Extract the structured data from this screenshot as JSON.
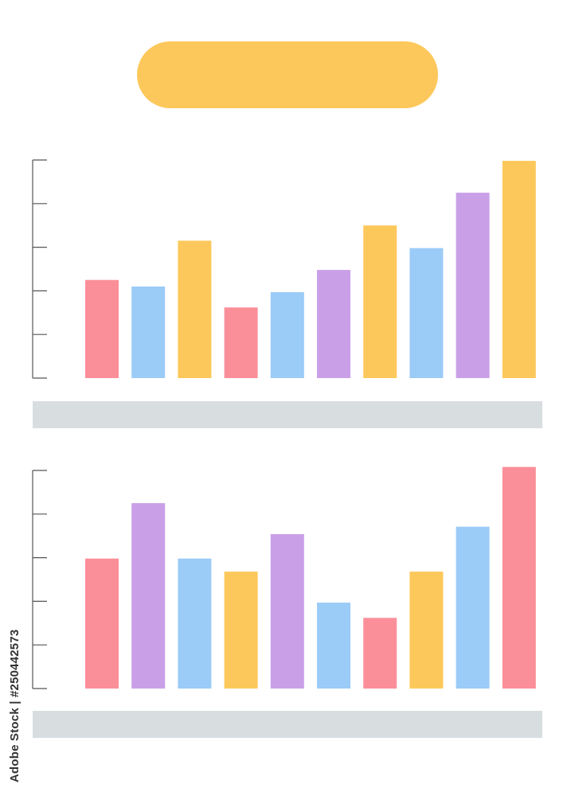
{
  "colors": {
    "pink": "#fb8f99",
    "blue": "#9bcbf7",
    "yellow": "#fdc85b",
    "purple": "#c9a0e8",
    "axis": "#555555",
    "caption_bar": "#d8dde0",
    "title_pill": "#fdc85b"
  },
  "stock_id": "Adobe Stock | #250442573",
  "chart_data": [
    {
      "type": "bar",
      "title": "",
      "xlabel": "",
      "ylabel": "",
      "ylim": [
        0,
        5
      ],
      "ticks": 5,
      "grid": false,
      "legend": "none",
      "values": [
        2.25,
        2.1,
        3.15,
        1.62,
        1.97,
        2.48,
        3.5,
        2.98,
        4.25,
        4.98
      ],
      "bar_colors": [
        "pink",
        "blue",
        "yellow",
        "pink",
        "blue",
        "purple",
        "yellow",
        "blue",
        "purple",
        "yellow"
      ]
    },
    {
      "type": "bar",
      "title": "",
      "xlabel": "",
      "ylabel": "",
      "ylim": [
        0,
        5
      ],
      "ticks": 5,
      "grid": false,
      "legend": "none",
      "values": [
        2.98,
        4.25,
        2.98,
        2.68,
        3.54,
        1.97,
        1.62,
        2.68,
        3.71,
        5.08
      ],
      "bar_colors": [
        "pink",
        "purple",
        "blue",
        "yellow",
        "purple",
        "blue",
        "pink",
        "yellow",
        "blue",
        "pink"
      ]
    }
  ]
}
